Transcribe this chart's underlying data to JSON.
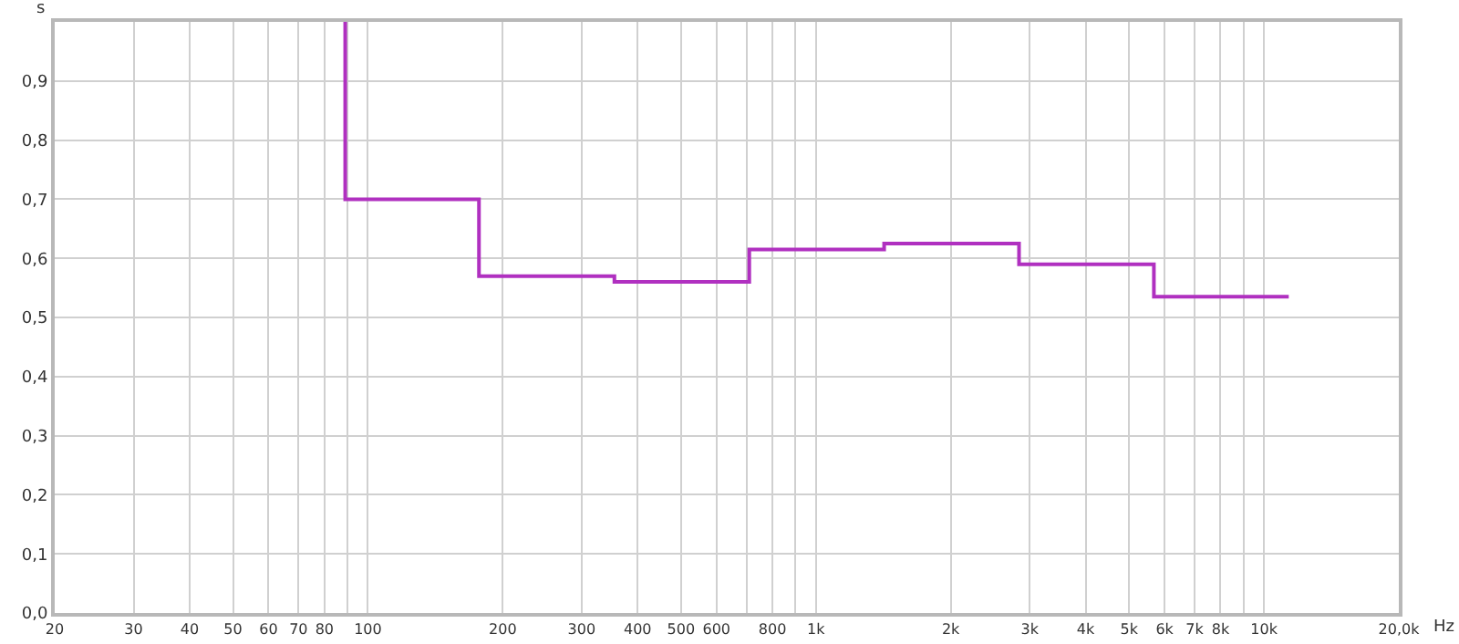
{
  "chart_data": {
    "type": "step",
    "xlabel": "Hz",
    "ylabel": "s",
    "log": "x",
    "grid": true,
    "marker": "none",
    "line_style": "solid",
    "x": [
      89,
      89,
      177,
      355,
      710,
      1420,
      2840,
      5680,
      11360
    ],
    "series": [
      {
        "color": "#b030c0",
        "values": [
          1.0,
          0.7,
          0.57,
          0.56,
          0.615,
          0.625,
          0.59,
          0.535,
          0.535
        ]
      }
    ],
    "xlim": [
      20,
      20000
    ],
    "ylim": [
      0,
      1.0
    ],
    "xticks": [
      20,
      30,
      40,
      50,
      60,
      70,
      80,
      {
        "value": 90,
        "label": null
      },
      100,
      200,
      300,
      400,
      500,
      600,
      {
        "value": 700,
        "label": null
      },
      800,
      {
        "value": 900,
        "label": null
      },
      {
        "value": 1000,
        "label": "1k"
      },
      {
        "value": 2000,
        "label": "2k"
      },
      {
        "value": 3000,
        "label": "3k"
      },
      {
        "value": 4000,
        "label": "4k"
      },
      {
        "value": 5000,
        "label": "5k"
      },
      {
        "value": 6000,
        "label": "6k"
      },
      {
        "value": 7000,
        "label": "7k"
      },
      {
        "value": 8000,
        "label": "8k"
      },
      {
        "value": 9000,
        "label": null
      },
      {
        "value": 10000,
        "label": "10k"
      },
      {
        "value": 20000,
        "label": "20,0k"
      }
    ],
    "yticks": [
      {
        "value": 0,
        "label": "0,0"
      },
      {
        "value": 0.1,
        "label": "0,1"
      },
      {
        "value": 0.2,
        "label": "0,2"
      },
      {
        "value": 0.3,
        "label": "0,3"
      },
      {
        "value": 0.4,
        "label": "0,4"
      },
      {
        "value": 0.5,
        "label": "0,5"
      },
      {
        "value": 0.6,
        "label": "0,6"
      },
      {
        "value": 0.7,
        "label": "0,7"
      },
      {
        "value": 0.8,
        "label": "0,8"
      },
      {
        "value": 0.9,
        "label": "0,9"
      },
      {
        "value": 1.0,
        "label": null
      }
    ]
  }
}
